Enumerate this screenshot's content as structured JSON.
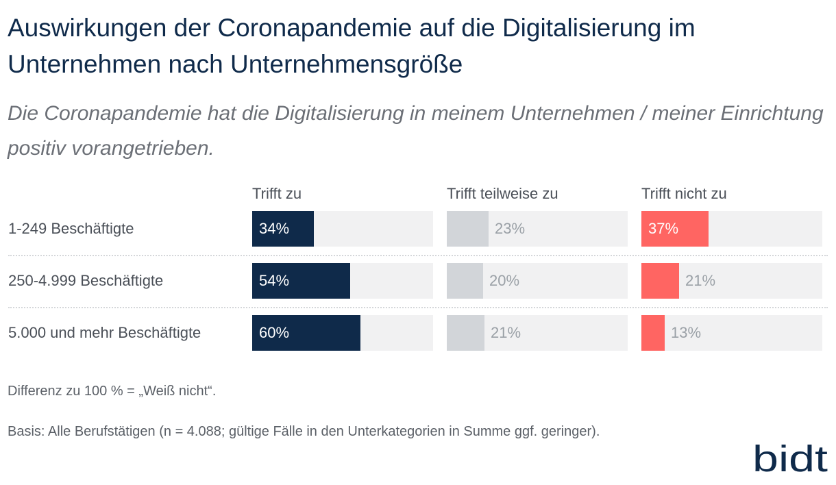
{
  "header": {
    "title": "Auswirkungen der Coronapandemie auf die Digitalisierung im Unternehmen nach Unternehmensgröße",
    "subtitle": "Die Coronapandemie hat die Digitalisierung in meinem Unternehmen / meiner Einrichtung positiv vorangetrieben."
  },
  "chart_data": {
    "type": "bar",
    "title": "Auswirkungen der Coronapandemie auf die Digitalisierung im Unternehmen nach Unternehmensgröße",
    "subtitle": "Die Coronapandemie hat die Digitalisierung in meinem Unternehmen / meiner Einrichtung positiv vorangetrieben.",
    "categories": [
      "1-249 Beschäftigte",
      "250-4.999 Beschäftigte",
      "5.000 und mehr Beschäftigte"
    ],
    "series": [
      {
        "name": "Trifft zu",
        "values": [
          34,
          54,
          60
        ],
        "labels": [
          "34%",
          "54%",
          "60%"
        ],
        "color": "#0f2a4a",
        "label_color": "#ffffff"
      },
      {
        "name": "Trifft teilweise zu",
        "values": [
          23,
          20,
          21
        ],
        "labels": [
          "23%",
          "20%",
          "21%"
        ],
        "color": "#d2d5d9",
        "label_color": "#9aa0a6"
      },
      {
        "name": "Trifft nicht zu",
        "values": [
          37,
          21,
          13
        ],
        "labels": [
          "37%",
          "21%",
          "13%"
        ],
        "color": "#ff6562",
        "label_color": "#9aa0a6"
      }
    ],
    "xlim": [
      0,
      100
    ],
    "unit": "%"
  },
  "notes": {
    "difference": "Differenz zu 100 % = „Weiß nicht“.",
    "basis": "Basis: Alle Berufstätigen (n = 4.088; gültige Fälle in den Unterkategorien in Summe ggf. geringer)."
  },
  "logo": {
    "text": "bidt",
    "color": "#0f2a4a"
  },
  "colors": {
    "track": "#f1f1f2",
    "text": "#4a4f57"
  }
}
